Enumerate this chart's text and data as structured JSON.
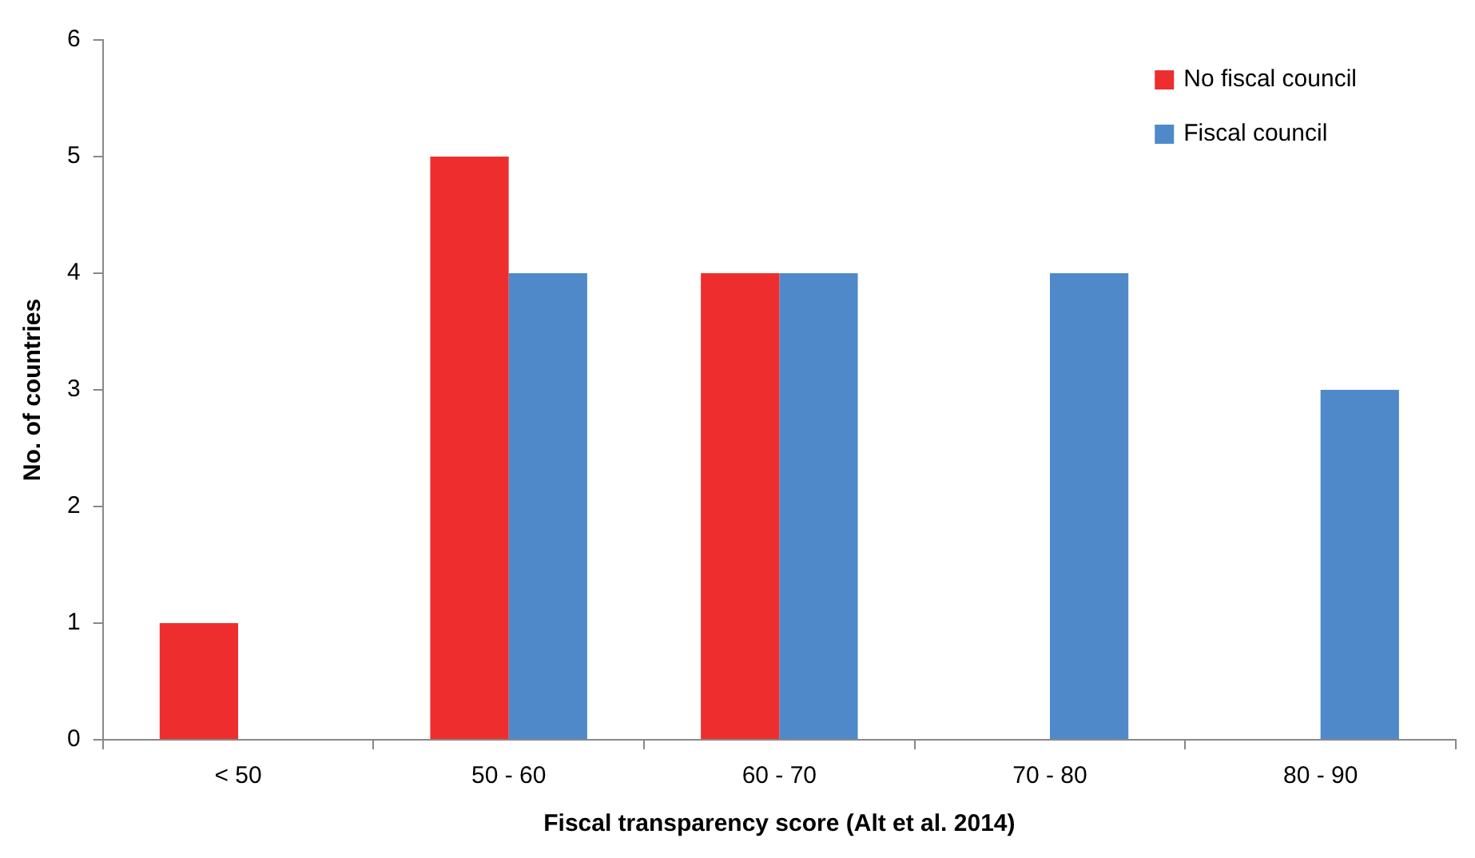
{
  "chart_data": {
    "type": "bar",
    "xlabel": "Fiscal transparency score (Alt et al. 2014)",
    "ylabel": "No. of countries",
    "categories": [
      "< 50",
      "50 - 60",
      "60 - 70",
      "70 - 80",
      "80 - 90"
    ],
    "series": [
      {
        "name": "No fiscal council",
        "color": "#ee2e2e",
        "values": [
          1,
          5,
          4,
          0,
          0
        ]
      },
      {
        "name": "Fiscal council",
        "color": "#4f89c9",
        "values": [
          0,
          4,
          4,
          4,
          3
        ]
      }
    ],
    "ylim": [
      0,
      6
    ],
    "yticks": [
      0,
      1,
      2,
      3,
      4,
      5,
      6
    ],
    "grid": false,
    "legend": "top right"
  }
}
